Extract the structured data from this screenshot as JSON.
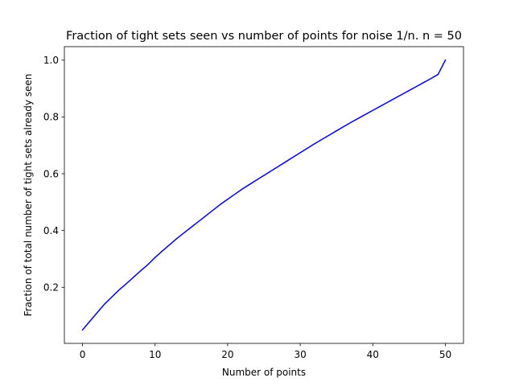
{
  "chart_data": {
    "type": "line",
    "title": "Fraction of tight sets seen vs number of points for noise 1/n. n = 50",
    "xlabel": "Number of points",
    "ylabel": "Fraction of total number of tight sets already seen",
    "xlim": [
      -2.5,
      52.5
    ],
    "ylim": [
      0.0025,
      1.0475
    ],
    "x_ticks": [
      0,
      10,
      20,
      30,
      40,
      50
    ],
    "y_ticks": [
      0.2,
      0.4,
      0.6,
      0.8,
      1.0
    ],
    "x_tick_labels": [
      "0",
      "10",
      "20",
      "30",
      "40",
      "50"
    ],
    "y_tick_labels": [
      "0.2",
      "0.4",
      "0.6",
      "0.8",
      "1.0"
    ],
    "grid": false,
    "series": [
      {
        "color": "#0000ff",
        "x": [
          0,
          1,
          2,
          3,
          4,
          5,
          6,
          7,
          8,
          9,
          10,
          11,
          12,
          13,
          14,
          15,
          16,
          17,
          18,
          19,
          20,
          21,
          22,
          23,
          24,
          25,
          26,
          27,
          28,
          29,
          30,
          31,
          32,
          33,
          34,
          35,
          36,
          37,
          38,
          39,
          40,
          41,
          42,
          43,
          44,
          45,
          46,
          47,
          48,
          49,
          50
        ],
        "y": [
          0.05,
          0.08,
          0.11,
          0.14,
          0.165,
          0.19,
          0.212,
          0.235,
          0.258,
          0.28,
          0.305,
          0.328,
          0.35,
          0.372,
          0.392,
          0.412,
          0.432,
          0.452,
          0.472,
          0.492,
          0.51,
          0.528,
          0.546,
          0.562,
          0.578,
          0.594,
          0.61,
          0.626,
          0.642,
          0.658,
          0.674,
          0.69,
          0.706,
          0.721,
          0.736,
          0.751,
          0.766,
          0.781,
          0.795,
          0.809,
          0.823,
          0.837,
          0.851,
          0.865,
          0.879,
          0.893,
          0.907,
          0.921,
          0.935,
          0.95,
          1.0
        ]
      }
    ]
  }
}
